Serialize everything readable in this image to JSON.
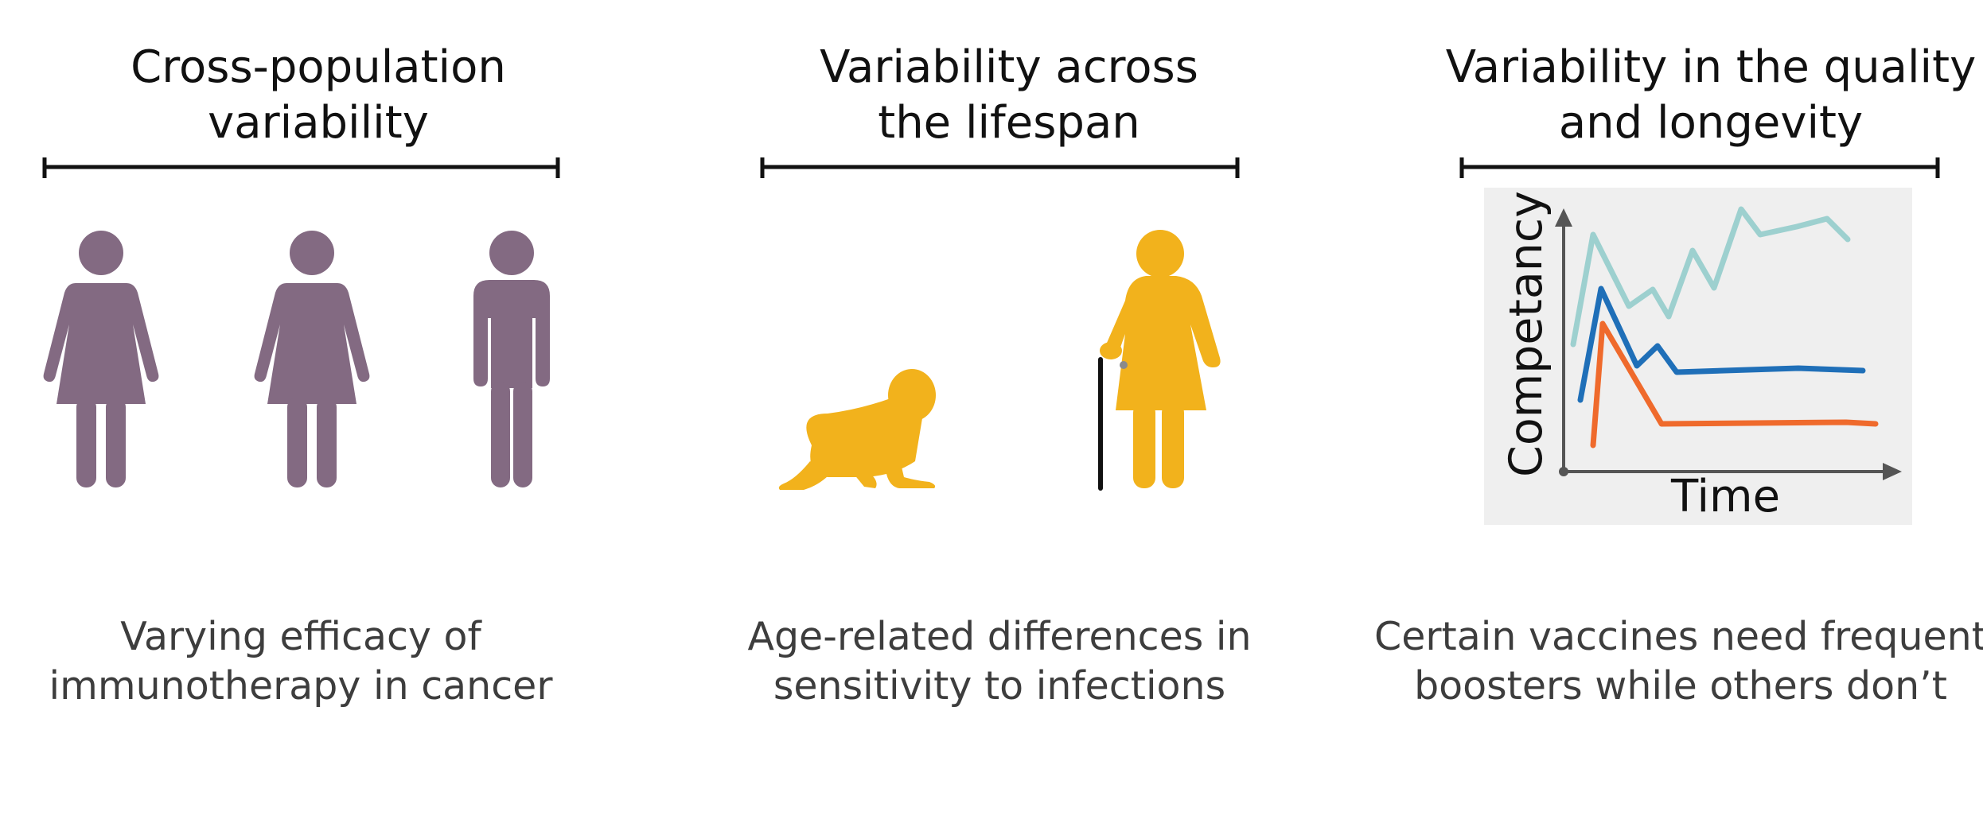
{
  "panels": [
    {
      "title_lines": [
        "Cross-population",
        "variability"
      ],
      "caption_lines": [
        "Varying efficacy of",
        "immunotherapy in cancer"
      ],
      "icons": [
        "woman-icon",
        "woman-icon",
        "man-icon"
      ],
      "icon_color": "#836a82"
    },
    {
      "title_lines": [
        "Variability across",
        "the lifespan"
      ],
      "caption_lines": [
        "Age-related differences in",
        "sensitivity to infections"
      ],
      "icons": [
        "crawling-baby-icon",
        "elderly-woman-with-cane-icon"
      ],
      "icon_color": "#f2b21c"
    },
    {
      "title_lines": [
        "Variability in the quality",
        "and longevity"
      ],
      "caption_lines": [
        "Certain vaccines need frequent",
        "boosters while others don’t"
      ],
      "inset_chart": {
        "ylabel": "Competancy",
        "xlabel": "Time"
      }
    }
  ],
  "colors": {
    "teal_line": "#9dd0cf",
    "blue_line": "#1f6fb8",
    "orange_line": "#ef6a2c",
    "chart_background": "#efefef",
    "axis": "#555555"
  }
}
